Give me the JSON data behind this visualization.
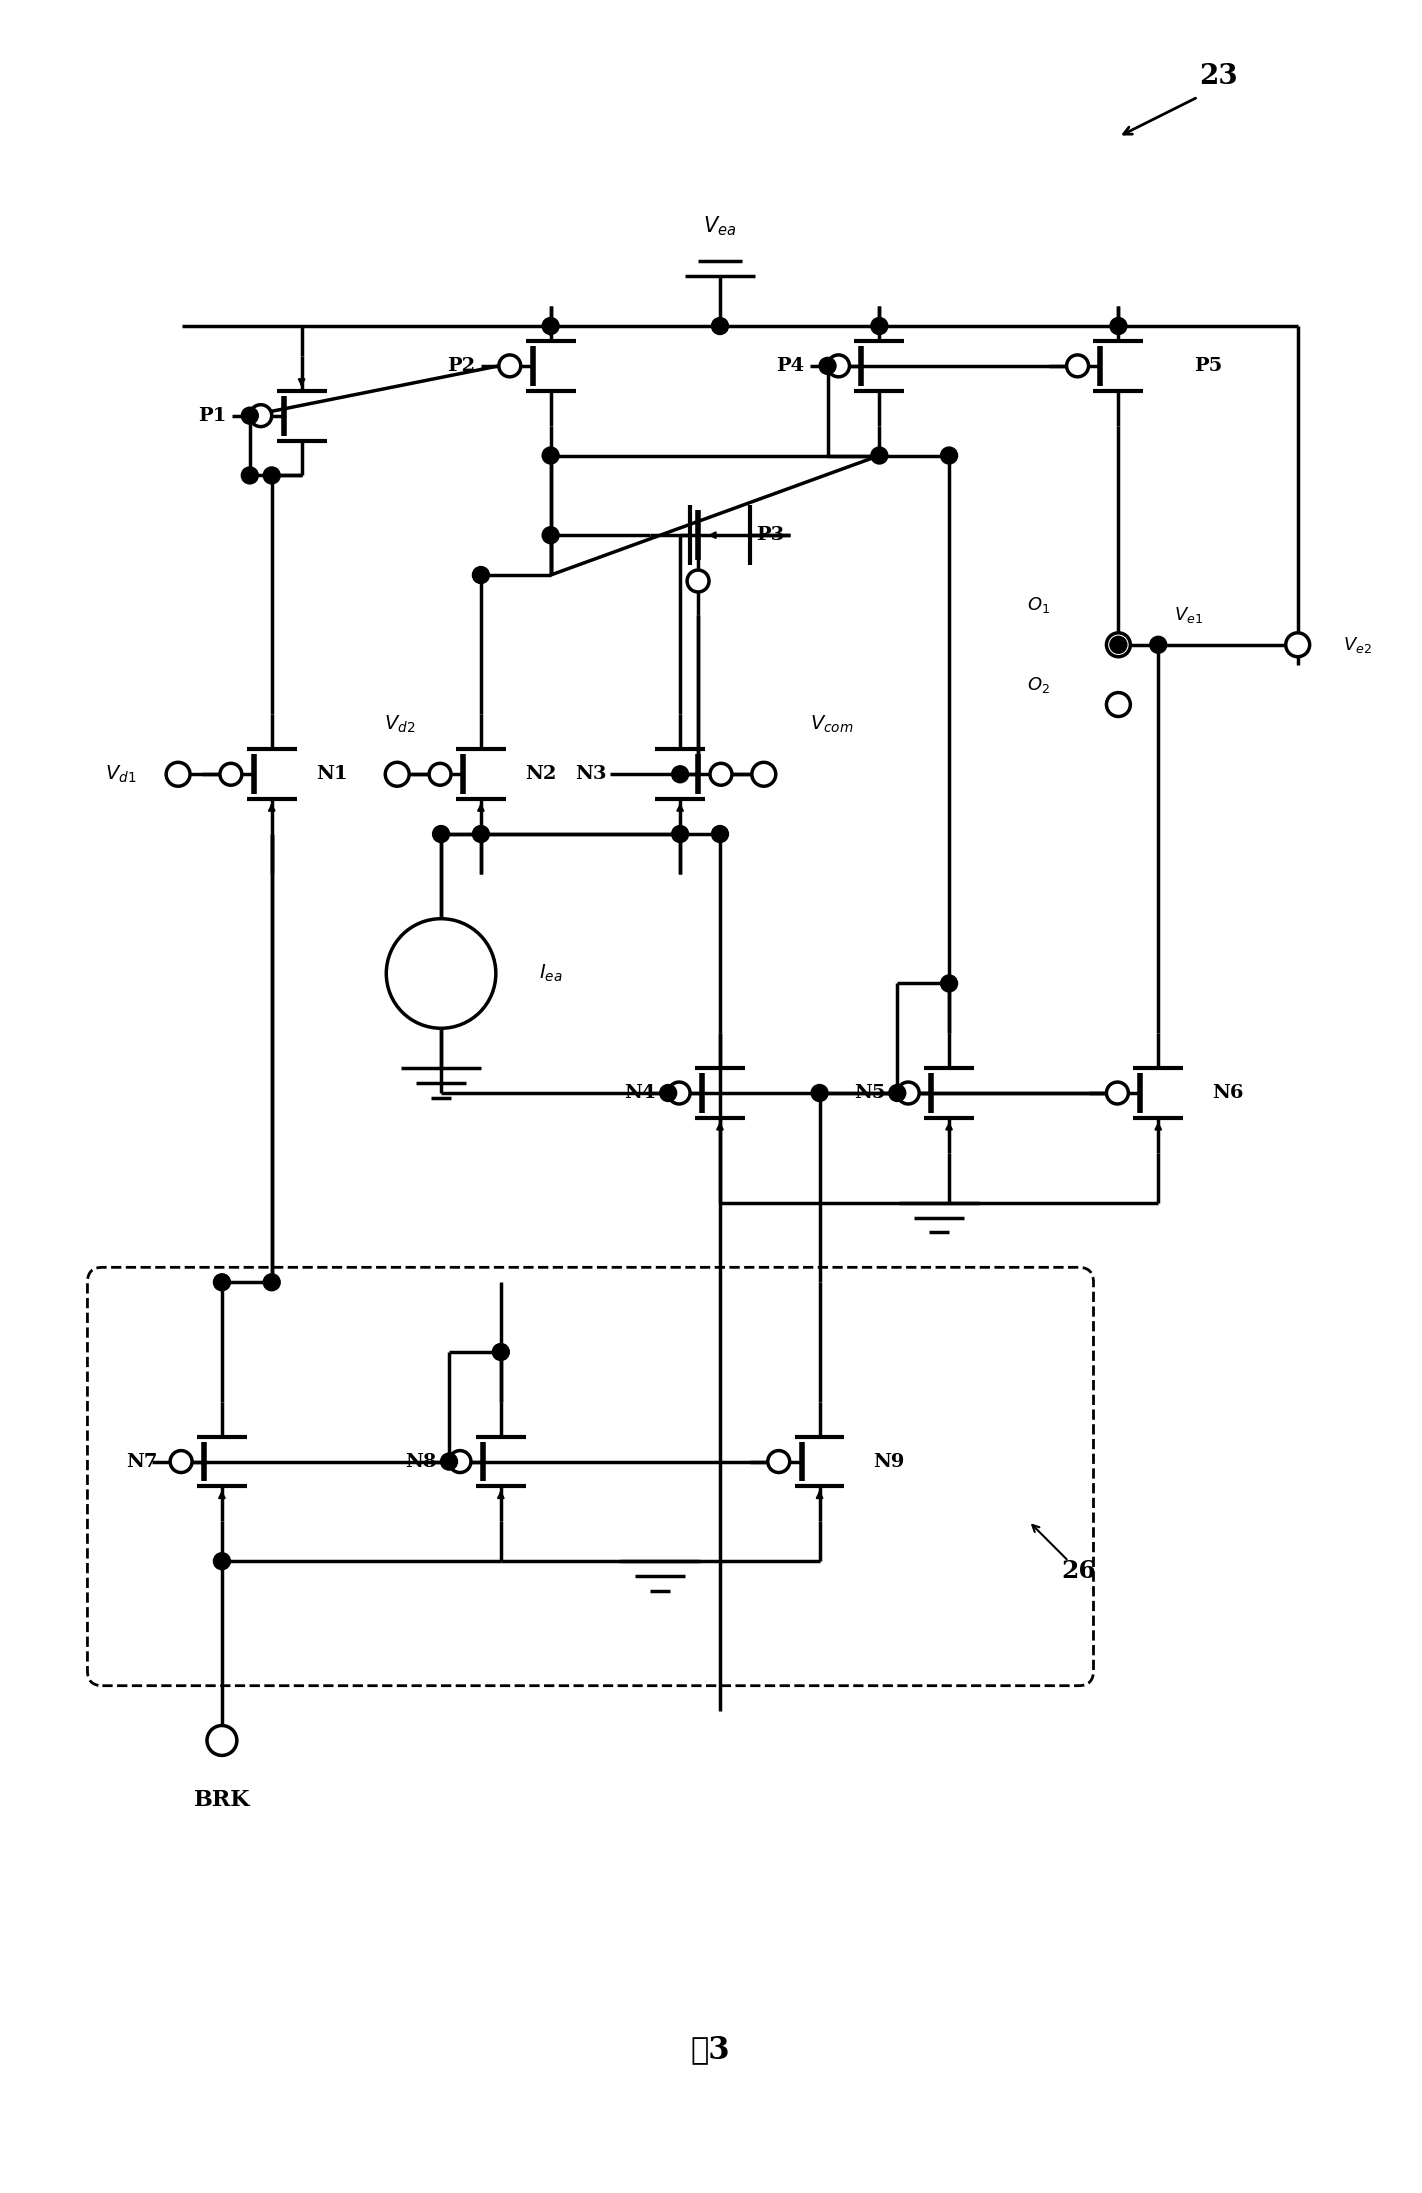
{
  "bg_color": "#ffffff",
  "lw": 2.5,
  "title": "图3",
  "ref_label": "23",
  "block_label": "26"
}
